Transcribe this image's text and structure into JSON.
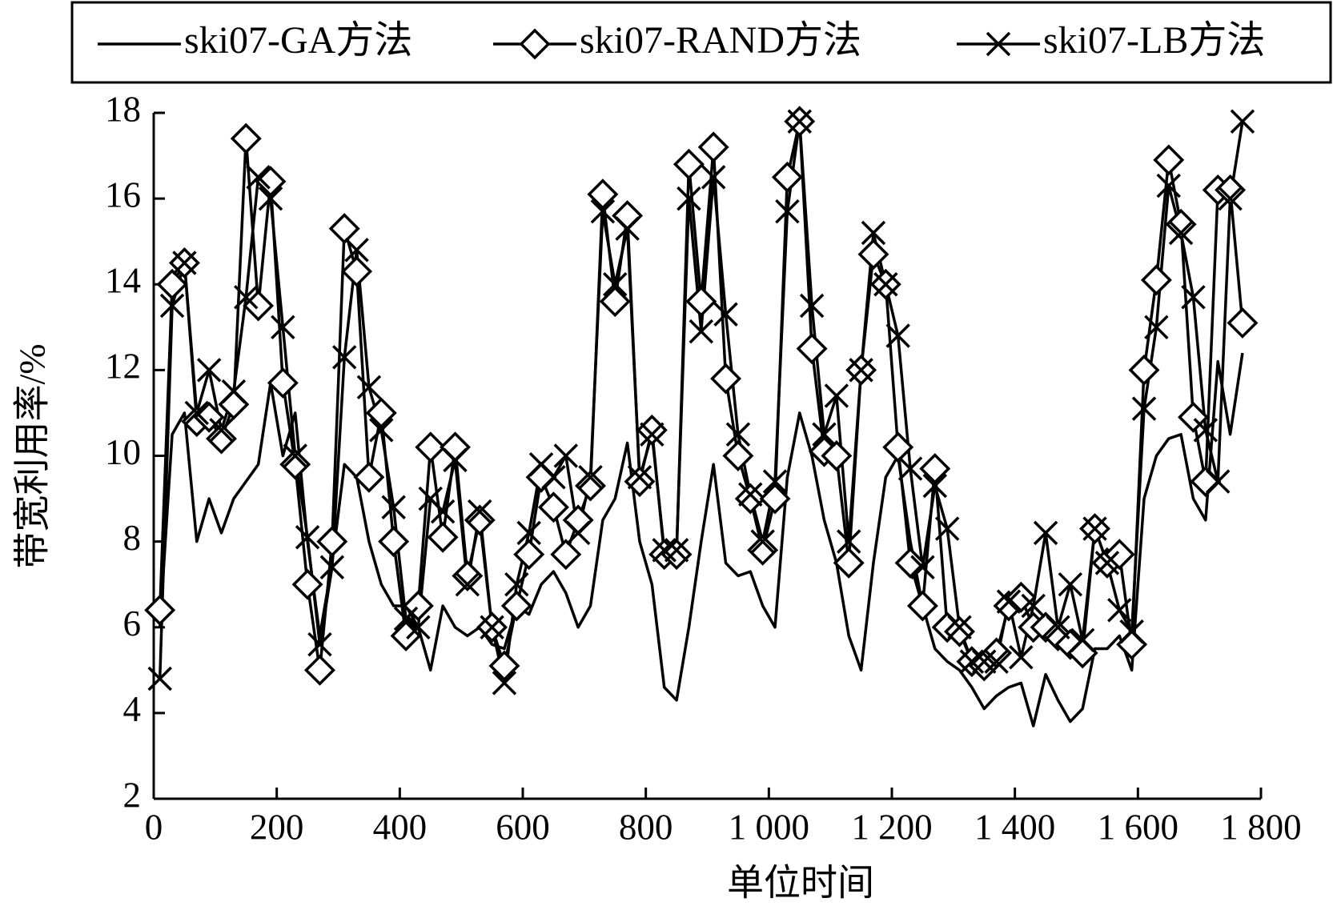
{
  "chart_data": {
    "type": "line",
    "x_label": "单位时间",
    "y_label": "带宽利用率/%",
    "x": [
      10,
      30,
      50,
      70,
      90,
      110,
      130,
      150,
      170,
      190,
      210,
      230,
      250,
      270,
      290,
      310,
      330,
      350,
      370,
      390,
      410,
      430,
      450,
      470,
      490,
      510,
      530,
      550,
      570,
      590,
      610,
      630,
      650,
      670,
      690,
      710,
      730,
      750,
      770,
      790,
      810,
      830,
      850,
      870,
      890,
      910,
      930,
      950,
      970,
      990,
      1010,
      1030,
      1050,
      1070,
      1090,
      1110,
      1130,
      1150,
      1170,
      1190,
      1210,
      1230,
      1250,
      1270,
      1290,
      1310,
      1330,
      1350,
      1370,
      1390,
      1410,
      1430,
      1450,
      1470,
      1490,
      1510,
      1530,
      1550,
      1570,
      1590,
      1610,
      1630,
      1650,
      1670,
      1690,
      1710,
      1730,
      1750,
      1770
    ],
    "series": [
      {
        "name": "ski07-GA方法",
        "color": "#000000",
        "marker": "none",
        "values": [
          6.0,
          10.5,
          11.0,
          8.0,
          9.0,
          8.2,
          9.0,
          9.4,
          9.8,
          11.7,
          10.0,
          11.0,
          8.0,
          5.8,
          7.5,
          9.8,
          9.5,
          8.0,
          7.0,
          6.5,
          6.5,
          6.0,
          5.0,
          6.5,
          6.0,
          5.8,
          6.0,
          5.6,
          5.5,
          6.5,
          6.3,
          7.0,
          7.3,
          6.8,
          6.0,
          6.5,
          8.5,
          9.0,
          10.3,
          8.0,
          7.0,
          4.6,
          4.3,
          6.0,
          8.0,
          9.8,
          7.5,
          7.2,
          7.3,
          6.5,
          6.0,
          9.5,
          11.0,
          10.0,
          8.5,
          7.5,
          5.8,
          5.0,
          7.5,
          9.5,
          10.0,
          8.0,
          6.5,
          5.5,
          5.2,
          5.0,
          4.6,
          4.1,
          4.4,
          4.6,
          4.7,
          3.7,
          4.9,
          4.3,
          3.8,
          4.1,
          5.5,
          5.5,
          5.8,
          5.0,
          9.0,
          10.0,
          10.4,
          10.5,
          9.0,
          8.5,
          12.2,
          10.5,
          12.4
        ]
      },
      {
        "name": "ski07-RAND方法",
        "color": "#000000",
        "marker": "diamond",
        "values": [
          6.4,
          14.0,
          14.5,
          10.8,
          10.9,
          10.4,
          11.2,
          17.4,
          13.5,
          16.4,
          11.7,
          9.8,
          7.0,
          5.0,
          8.0,
          15.3,
          14.3,
          9.5,
          11.0,
          8.0,
          5.8,
          6.5,
          10.2,
          8.1,
          10.2,
          7.2,
          8.5,
          6.0,
          5.1,
          6.5,
          7.7,
          9.5,
          8.8,
          7.7,
          8.5,
          9.3,
          16.1,
          13.6,
          15.6,
          9.4,
          10.6,
          7.7,
          7.7,
          16.8,
          13.6,
          17.2,
          11.8,
          10.0,
          9.0,
          7.8,
          9.0,
          16.5,
          17.8,
          12.5,
          10.1,
          10.0,
          7.5,
          12.0,
          14.7,
          14.0,
          10.2,
          7.5,
          6.5,
          9.7,
          6.0,
          5.9,
          5.2,
          5.1,
          5.4,
          6.5,
          6.7,
          6.0,
          6.0,
          5.8,
          5.6,
          5.4,
          8.3,
          7.5,
          7.7,
          5.6,
          12.0,
          14.1,
          16.9,
          15.4,
          10.9,
          9.4,
          16.2,
          16.2,
          13.1
        ]
      },
      {
        "name": "ski07-LB方法",
        "color": "#000000",
        "marker": "x",
        "values": [
          4.8,
          13.5,
          14.5,
          11.0,
          12.0,
          10.6,
          11.5,
          13.7,
          16.5,
          16.0,
          13.0,
          10.0,
          8.1,
          5.6,
          7.4,
          12.3,
          14.8,
          11.6,
          10.6,
          8.8,
          6.2,
          6.0,
          9.0,
          8.7,
          9.9,
          7.0,
          8.7,
          6.0,
          4.7,
          7.0,
          8.2,
          9.8,
          9.5,
          10.0,
          8.2,
          9.5,
          15.7,
          14.0,
          15.3,
          9.5,
          10.5,
          7.8,
          7.8,
          16.0,
          12.9,
          16.5,
          13.3,
          10.5,
          9.1,
          8.0,
          9.4,
          15.7,
          17.8,
          13.5,
          10.5,
          11.4,
          8.0,
          12.0,
          15.2,
          14.0,
          12.8,
          9.7,
          7.4,
          9.3,
          8.3,
          6.0,
          5.2,
          5.2,
          5.2,
          6.6,
          5.3,
          6.5,
          8.2,
          6.0,
          7.0,
          5.7,
          8.3,
          7.5,
          6.4,
          5.9,
          11.1,
          13.0,
          16.3,
          15.2,
          13.7,
          10.6,
          9.4,
          16.0,
          17.8
        ]
      }
    ],
    "xlim": [
      0,
      1800
    ],
    "xticks": [
      0,
      200,
      400,
      600,
      800,
      {
        "value": 1000,
        "label": "1 000"
      },
      {
        "value": 1200,
        "label": "1 200"
      },
      {
        "value": 1400,
        "label": "1 400"
      },
      {
        "value": 1600,
        "label": "1 600"
      },
      {
        "value": 1800,
        "label": "1 800"
      }
    ],
    "ylim": [
      2,
      18
    ],
    "yticks": [
      2,
      4,
      6,
      8,
      10,
      12,
      14,
      16,
      18
    ],
    "legend": "top"
  }
}
